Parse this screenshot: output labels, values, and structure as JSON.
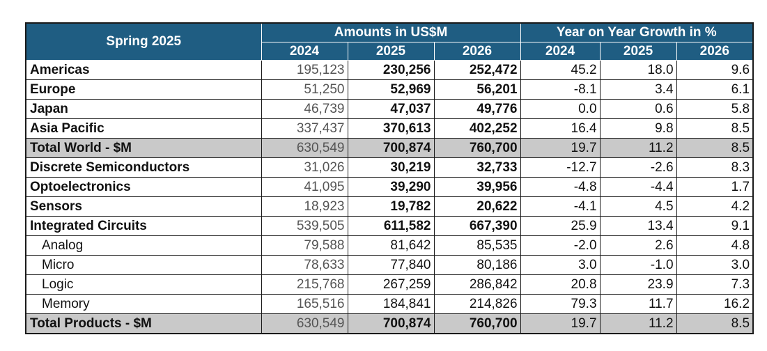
{
  "table": {
    "corner_label": "Spring 2025",
    "group_amounts": "Amounts in US$M",
    "group_growth": "Year on Year Growth in %",
    "years": [
      "2024",
      "2025",
      "2026"
    ],
    "rows": [
      {
        "label": "Americas",
        "a2024": "195,123",
        "a2025": "230,256",
        "a2026": "252,472",
        "g2024": "45.2",
        "g2025": "18.0",
        "g2026": "9.6"
      },
      {
        "label": "Europe",
        "a2024": "51,250",
        "a2025": "52,969",
        "a2026": "56,201",
        "g2024": "-8.1",
        "g2025": "3.4",
        "g2026": "6.1"
      },
      {
        "label": "Japan",
        "a2024": "46,739",
        "a2025": "47,037",
        "a2026": "49,776",
        "g2024": "0.0",
        "g2025": "0.6",
        "g2026": "5.8"
      },
      {
        "label": "Asia Pacific",
        "a2024": "337,437",
        "a2025": "370,613",
        "a2026": "402,252",
        "g2024": "16.4",
        "g2025": "9.8",
        "g2026": "8.5"
      },
      {
        "label": "Total World - $M",
        "a2024": "630,549",
        "a2025": "700,874",
        "a2026": "760,700",
        "g2024": "19.7",
        "g2025": "11.2",
        "g2026": "8.5"
      },
      {
        "label": "Discrete Semiconductors",
        "a2024": "31,026",
        "a2025": "30,219",
        "a2026": "32,733",
        "g2024": "-12.7",
        "g2025": "-2.6",
        "g2026": "8.3"
      },
      {
        "label": "Optoelectronics",
        "a2024": "41,095",
        "a2025": "39,290",
        "a2026": "39,956",
        "g2024": "-4.8",
        "g2025": "-4.4",
        "g2026": "1.7"
      },
      {
        "label": "Sensors",
        "a2024": "18,923",
        "a2025": "19,782",
        "a2026": "20,622",
        "g2024": "-4.1",
        "g2025": "4.5",
        "g2026": "4.2"
      },
      {
        "label": "Integrated Circuits",
        "a2024": "539,505",
        "a2025": "611,582",
        "a2026": "667,390",
        "g2024": "25.9",
        "g2025": "13.4",
        "g2026": "9.1"
      },
      {
        "label": "Analog",
        "a2024": "79,588",
        "a2025": "81,642",
        "a2026": "85,535",
        "g2024": "-2.0",
        "g2025": "2.6",
        "g2026": "4.8"
      },
      {
        "label": "Micro",
        "a2024": "78,633",
        "a2025": "77,840",
        "a2026": "80,186",
        "g2024": "3.0",
        "g2025": "-1.0",
        "g2026": "3.0"
      },
      {
        "label": "Logic",
        "a2024": "215,768",
        "a2025": "267,259",
        "a2026": "286,842",
        "g2024": "20.8",
        "g2025": "23.9",
        "g2026": "7.3"
      },
      {
        "label": "Memory",
        "a2024": "165,516",
        "a2025": "184,841",
        "a2026": "214,826",
        "g2024": "79.3",
        "g2025": "11.7",
        "g2026": "16.2"
      },
      {
        "label": "Total Products - $M",
        "a2024": "630,549",
        "a2025": "700,874",
        "a2026": "760,700",
        "g2024": "19.7",
        "g2025": "11.2",
        "g2026": "8.5"
      }
    ]
  }
}
